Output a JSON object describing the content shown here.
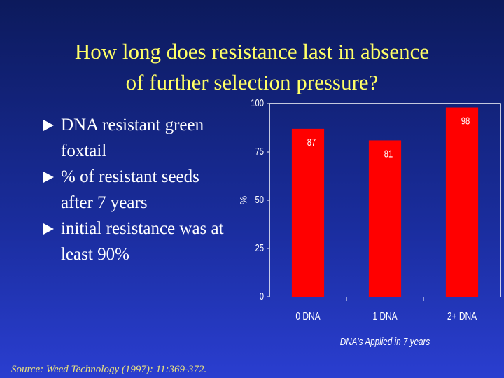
{
  "title_lines": [
    "How long does resistance last in absence",
    "of further selection pressure?"
  ],
  "bullets": [
    "DNA resistant green foxtail",
    "% of resistant seeds after 7 years",
    "initial resistance was at least 90%"
  ],
  "source": "Source: Weed Technology (1997): 11:369-372.",
  "chart_data": {
    "type": "bar",
    "y_label": "%",
    "x_label": "DNA's Applied in 7 years",
    "categories": [
      "0 DNA",
      "1 DNA",
      "2+ DNA"
    ],
    "values": [
      87,
      81,
      98
    ],
    "color": "#ff0000",
    "ylim": [
      0,
      100
    ],
    "yticks": [
      0,
      25,
      50,
      75,
      100
    ]
  }
}
